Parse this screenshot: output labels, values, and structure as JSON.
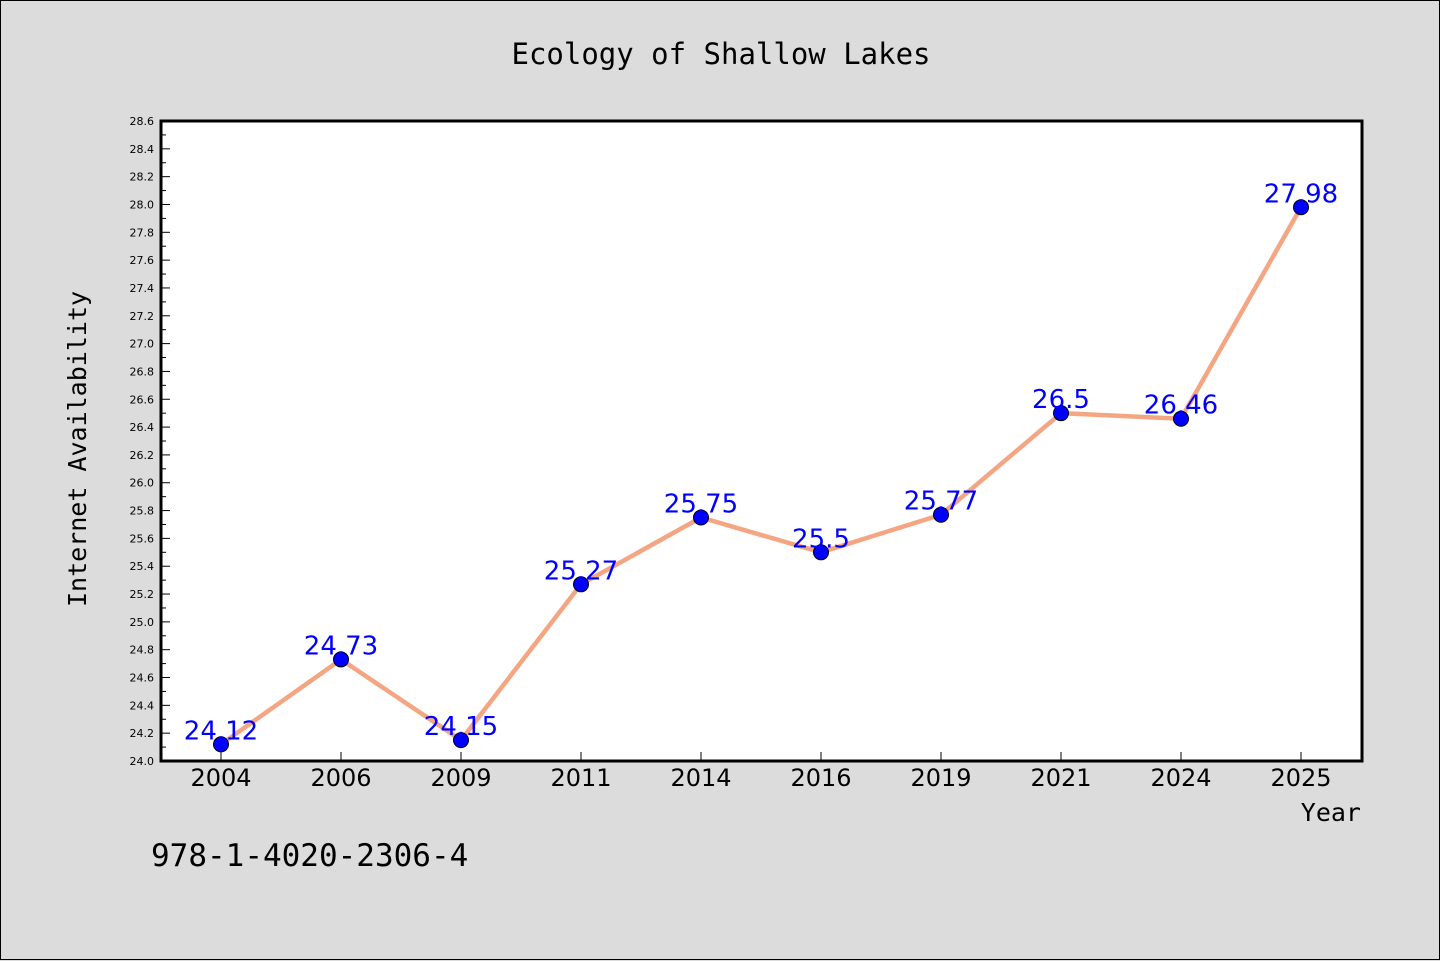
{
  "chart_data": {
    "type": "line",
    "title": "Ecology of Shallow Lakes",
    "xlabel": "Year",
    "ylabel": "Internet Availability",
    "categories": [
      "2004",
      "2006",
      "2009",
      "2011",
      "2014",
      "2016",
      "2019",
      "2021",
      "2024",
      "2025"
    ],
    "values": [
      24.12,
      24.73,
      24.15,
      25.27,
      25.75,
      25.5,
      25.77,
      26.5,
      26.46,
      27.98
    ],
    "data_labels": [
      "24.12",
      "24.73",
      "24.15",
      "25.27",
      "25.75",
      "25.5",
      "25.77",
      "26.5",
      "26.46",
      "27.98"
    ],
    "ylim": [
      24.0,
      28.6
    ],
    "y_ticks": [
      "24.0",
      "24.2",
      "24.4",
      "24.6",
      "24.8",
      "25.0",
      "25.2",
      "25.4",
      "25.6",
      "25.8",
      "26.0",
      "26.2",
      "26.4",
      "26.6",
      "26.8",
      "27.0",
      "27.2",
      "27.4",
      "27.6",
      "27.8",
      "28.0",
      "28.2",
      "28.4",
      "28.6"
    ],
    "grid": false,
    "line_color": "#f4a582",
    "marker_color": "#0000ff",
    "label_color": "#0000ff",
    "plot_background": "#ffffff",
    "page_background": "#dcdcdc"
  },
  "footer": {
    "isbn": "978-1-4020-2306-4"
  }
}
